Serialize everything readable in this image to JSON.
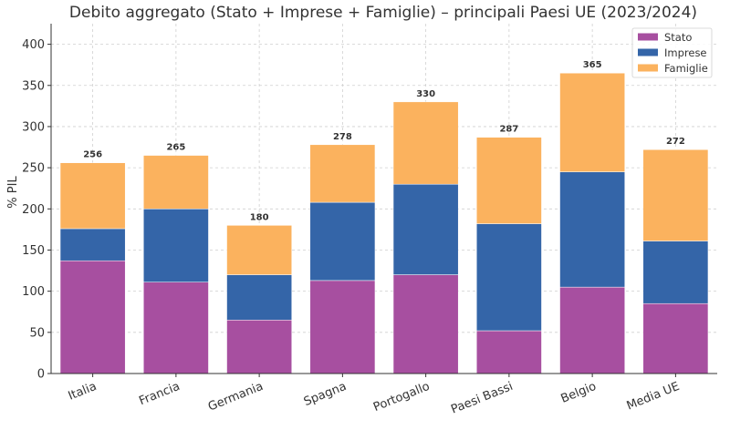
{
  "chart_data": {
    "type": "bar",
    "stacked": true,
    "title": "Debito aggregato (Stato + Imprese + Famiglie) – principali Paesi UE (2023/2024)",
    "xlabel": "",
    "ylabel": "% PIL",
    "ylim": [
      0,
      425
    ],
    "yticks": [
      0,
      50,
      100,
      150,
      200,
      250,
      300,
      350,
      400
    ],
    "grid": true,
    "legend_position": "top-right",
    "categories": [
      "Italia",
      "Francia",
      "Germania",
      "Spagna",
      "Portogallo",
      "Paesi Bassi",
      "Belgio",
      "Media UE"
    ],
    "series": [
      {
        "name": "Stato",
        "color": "#a74fa0",
        "values": [
          137,
          111,
          65,
          113,
          120,
          52,
          105,
          85
        ]
      },
      {
        "name": "Imprese",
        "color": "#3465a8",
        "values": [
          39,
          89,
          55,
          95,
          110,
          130,
          140,
          76
        ]
      },
      {
        "name": "Famiglie",
        "color": "#fbb25e",
        "values": [
          80,
          65,
          60,
          70,
          100,
          105,
          120,
          111
        ]
      }
    ],
    "totals": [
      "256",
      "265",
      "180",
      "278",
      "330",
      "287",
      "365",
      "272"
    ]
  }
}
